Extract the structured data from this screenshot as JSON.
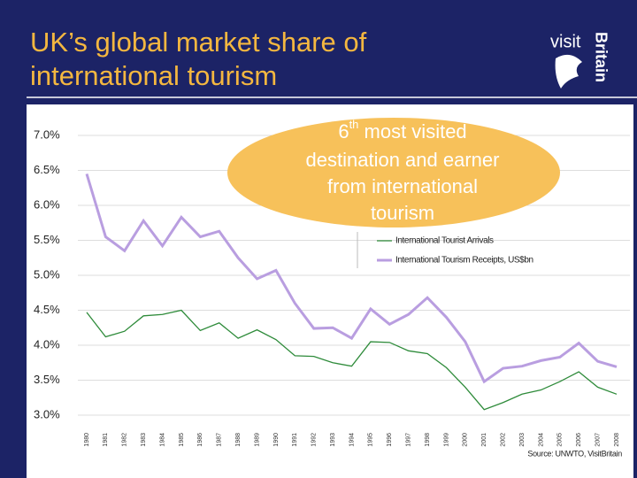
{
  "header": {
    "title_lines": [
      "UK’s global market share of",
      "international tourism"
    ],
    "logo": {
      "visit": "visit",
      "britain": "Britain"
    }
  },
  "chart_data": {
    "type": "line",
    "categories": [
      "1980",
      "1981",
      "1982",
      "1983",
      "1984",
      "1985",
      "1986",
      "1987",
      "1988",
      "1989",
      "1990",
      "1991",
      "1992",
      "1993",
      "1994",
      "1995",
      "1996",
      "1997",
      "1998",
      "1999",
      "2000",
      "2001",
      "2002",
      "2003",
      "2004",
      "2005",
      "2006",
      "2007",
      "2008"
    ],
    "series": [
      {
        "name": "International Tourist Arrivals",
        "color": "#2e8b3a",
        "values": [
          4.47,
          4.12,
          4.2,
          4.42,
          4.44,
          4.5,
          4.21,
          4.32,
          4.1,
          4.22,
          4.08,
          3.85,
          3.84,
          3.75,
          3.7,
          4.05,
          4.04,
          3.92,
          3.88,
          3.68,
          3.4,
          3.08,
          3.18,
          3.3,
          3.36,
          3.48,
          3.62,
          3.4,
          3.3
        ]
      },
      {
        "name": "International Tourism Receipts, US$bn",
        "color": "#b99ee0",
        "values": [
          6.45,
          5.55,
          5.35,
          5.78,
          5.42,
          5.83,
          5.55,
          5.63,
          5.25,
          4.95,
          5.07,
          4.6,
          4.24,
          4.25,
          4.1,
          4.52,
          4.3,
          4.44,
          4.68,
          4.4,
          4.05,
          3.48,
          3.67,
          3.7,
          3.78,
          3.83,
          4.03,
          3.77,
          3.69
        ]
      }
    ],
    "ylim": [
      3,
      7
    ],
    "yticks": [
      {
        "value": 3,
        "label": "3.0%"
      },
      {
        "value": 3.5,
        "label": "3.5%"
      },
      {
        "value": 4,
        "label": "4.0%"
      },
      {
        "value": 4.5,
        "label": "4.5%"
      },
      {
        "value": 5,
        "label": "5.0%"
      },
      {
        "value": 5.5,
        "label": "5.5%"
      },
      {
        "value": 6,
        "label": "6.0%"
      },
      {
        "value": 6.5,
        "label": "6.5%"
      },
      {
        "value": 7,
        "label": "7.0%"
      }
    ],
    "grid": true,
    "annotation": {
      "lead": "6",
      "sup": "th",
      "lines": [
        " most visited",
        "destination and earner",
        "from international",
        "tourism"
      ]
    },
    "source": "Source: UNWTO, VisitBritain"
  }
}
